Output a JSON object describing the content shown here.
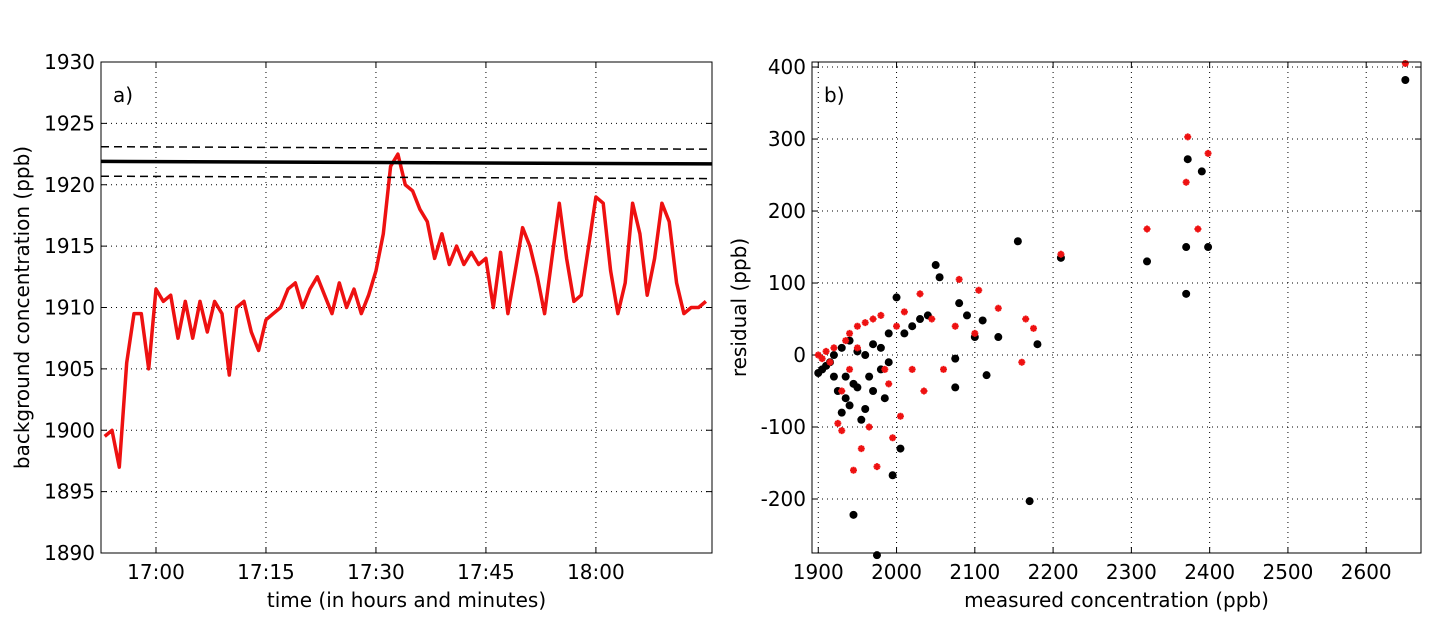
{
  "chart_data": [
    {
      "type": "line",
      "panel_label": "a)",
      "xlabel": "time (in hours and minutes)",
      "ylabel": "background concentration (ppb)",
      "xlim": [
        "16:52:30",
        "18:15:50"
      ],
      "xticks": [
        "17:00",
        "17:15",
        "17:30",
        "17:45",
        "18:00"
      ],
      "ylim": [
        1890,
        1930
      ],
      "yticks": [
        1890,
        1895,
        1900,
        1905,
        1910,
        1915,
        1920,
        1925,
        1930
      ],
      "grid": true,
      "series": [
        {
          "color": "#ee1111",
          "style": "solid",
          "width": 3.5,
          "x": [
            "16:53",
            "16:54",
            "16:55",
            "16:56",
            "16:57",
            "16:58",
            "16:59",
            "17:00",
            "17:01",
            "17:02",
            "17:03",
            "17:04",
            "17:05",
            "17:06",
            "17:07",
            "17:08",
            "17:09",
            "17:10",
            "17:11",
            "17:12",
            "17:13",
            "17:14",
            "17:15",
            "17:16",
            "17:17",
            "17:18",
            "17:19",
            "17:20",
            "17:21",
            "17:22",
            "17:23",
            "17:24",
            "17:25",
            "17:26",
            "17:27",
            "17:28",
            "17:29",
            "17:30",
            "17:31",
            "17:32",
            "17:33",
            "17:34",
            "17:35",
            "17:36",
            "17:37",
            "17:38",
            "17:39",
            "17:40",
            "17:41",
            "17:42",
            "17:43",
            "17:44",
            "17:45",
            "17:46",
            "17:47",
            "17:48",
            "17:49",
            "17:50",
            "17:51",
            "17:52",
            "17:53",
            "17:54",
            "17:55",
            "17:56",
            "17:57",
            "17:58",
            "17:59",
            "18:00",
            "18:01",
            "18:02",
            "18:03",
            "18:04",
            "18:05",
            "18:06",
            "18:07",
            "18:08",
            "18:09",
            "18:10",
            "18:11",
            "18:12",
            "18:13",
            "18:14",
            "18:15"
          ],
          "values": [
            1899.5,
            1900,
            1897,
            1905.5,
            1909.5,
            1909.5,
            1905,
            1911.5,
            1910.5,
            1911,
            1907.5,
            1910.5,
            1907.5,
            1910.5,
            1908,
            1910.5,
            1909.5,
            1904.5,
            1910,
            1910.5,
            1908,
            1906.5,
            1909,
            1909.5,
            1910,
            1911.5,
            1912,
            1910,
            1911.5,
            1912.5,
            1911,
            1909.5,
            1912,
            1910,
            1911.5,
            1909.5,
            1911,
            1913,
            1916,
            1921.5,
            1922.5,
            1920,
            1919.5,
            1918,
            1917,
            1914,
            1916,
            1913.5,
            1915,
            1913.5,
            1914.5,
            1913.5,
            1914,
            1910,
            1914.5,
            1909.5,
            1913,
            1916.5,
            1915,
            1912.5,
            1909.5,
            1914,
            1918.5,
            1914,
            1910.5,
            1911,
            1915,
            1919,
            1918.5,
            1913,
            1909.5,
            1912,
            1918.5,
            1916,
            1911,
            1914,
            1918.5,
            1917,
            1912,
            1909.5,
            1910,
            1910,
            1910.5
          ]
        },
        {
          "color": "#000000",
          "style": "solid",
          "width": 3.5,
          "x": [
            "16:52:30",
            "18:15:50"
          ],
          "values": [
            1921.9,
            1921.7
          ]
        },
        {
          "color": "#000000",
          "style": "dashed",
          "width": 1.5,
          "x": [
            "16:52:30",
            "18:15:50"
          ],
          "values": [
            1923.1,
            1922.9
          ]
        },
        {
          "color": "#000000",
          "style": "dashed",
          "width": 1.5,
          "x": [
            "16:52:30",
            "18:15:50"
          ],
          "values": [
            1920.7,
            1920.5
          ]
        }
      ]
    },
    {
      "type": "scatter",
      "panel_label": "b)",
      "xlabel": "measured concentration (ppb)",
      "ylabel": "residual (ppb)",
      "xlim": [
        1892,
        2670
      ],
      "xticks": [
        1900,
        2000,
        2100,
        2200,
        2300,
        2400,
        2500,
        2600
      ],
      "ylim": [
        -275,
        407
      ],
      "yticks": [
        -200,
        -100,
        0,
        100,
        200,
        300,
        400
      ],
      "grid": true,
      "series": [
        {
          "color": "#000000",
          "marker": "circle",
          "x": [
            1900,
            1905,
            1910,
            1915,
            1920,
            1925,
            1930,
            1935,
            1940,
            1945,
            1950,
            1955,
            1960,
            1965,
            1970,
            1975,
            1980,
            1985,
            1990,
            1995,
            2000,
            2005,
            2010,
            2020,
            2030,
            2040,
            2050,
            2055,
            2075,
            2075,
            2080,
            2090,
            2100,
            2110,
            2115,
            2130,
            2155,
            2170,
            2180,
            2210,
            2320,
            2370,
            2370,
            2372,
            2390,
            2398,
            2650,
            1920,
            1930,
            1940,
            1950,
            1960,
            1970,
            1980,
            1990,
            1945,
            1935
          ],
          "values": [
            -25,
            -20,
            -15,
            -10,
            -30,
            -50,
            -80,
            -60,
            -70,
            -222,
            -45,
            -90,
            -75,
            -30,
            -50,
            -278,
            -20,
            -60,
            -10,
            -167,
            80,
            -130,
            30,
            40,
            50,
            55,
            125,
            108,
            -5,
            -45,
            72,
            55,
            25,
            48,
            -28,
            25,
            158,
            -203,
            15,
            135,
            130,
            85,
            150,
            272,
            255,
            150,
            382,
            0,
            10,
            20,
            5,
            0,
            15,
            10,
            30,
            -40,
            -30
          ]
        },
        {
          "color": "#ee1111",
          "marker": "star",
          "x": [
            1900,
            1905,
            1910,
            1915,
            1920,
            1925,
            1930,
            1935,
            1940,
            1945,
            1950,
            1955,
            1960,
            1965,
            1970,
            1975,
            1980,
            1985,
            1990,
            1995,
            2000,
            2005,
            2010,
            2020,
            2030,
            2035,
            2045,
            2060,
            2075,
            2080,
            2100,
            2105,
            2130,
            2160,
            2165,
            2175,
            2210,
            2320,
            2370,
            2372,
            2385,
            2398,
            2650,
            1930,
            1940,
            1950
          ],
          "values": [
            0,
            -5,
            5,
            -10,
            10,
            -95,
            -105,
            20,
            30,
            -160,
            40,
            -130,
            45,
            -100,
            50,
            -155,
            55,
            -20,
            -40,
            -115,
            40,
            -85,
            60,
            -20,
            85,
            -50,
            50,
            -20,
            40,
            105,
            30,
            90,
            65,
            -10,
            50,
            37,
            140,
            175,
            240,
            303,
            175,
            280,
            405,
            -50,
            -20,
            10
          ]
        }
      ]
    }
  ]
}
